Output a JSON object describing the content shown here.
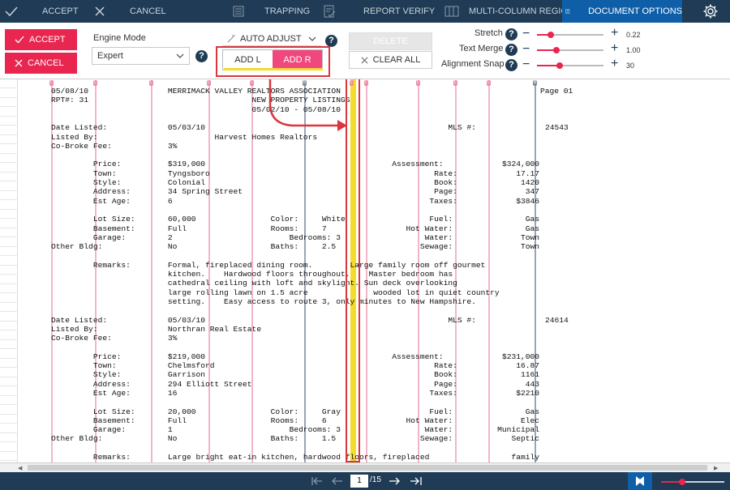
{
  "toolbar": {
    "accept": "ACCEPT",
    "cancel": "CANCEL",
    "trapping": "TRAPPING",
    "report_verify": "REPORT VERIFY",
    "multi_column_region": "MULTI-COLUMN REGION",
    "document_options": "DOCUMENT OPTIONS"
  },
  "options": {
    "accept_btn": "ACCEPT",
    "cancel_btn": "CANCEL",
    "engine_mode_label": "Engine Mode",
    "engine_mode_value": "Expert",
    "auto_adjust": "AUTO ADJUST",
    "add_l": "ADD L",
    "add_r": "ADD R",
    "delete": "DELETE",
    "clear_all": "CLEAR ALL",
    "stretch_label": "Stretch",
    "stretch_value": "0.22",
    "text_merge_label": "Text Merge",
    "text_merge_value": "1.00",
    "alignment_snap_label": "Alignment Snap",
    "alignment_snap_value": "30",
    "stretch_level": 0.22,
    "text_merge_level": 0.35,
    "alignment_snap_level": 0.3
  },
  "document": {
    "lines": [
      "05/08/10                 MERRIMACK VALLEY REALTORS ASSOCIATION",
      "RPT#: 31                                   NEW PROPERTY LISTINGS",
      "                                           05/02/10 - 05/08/10",
      "",
      "Date Listed:             05/03/10                                                    MLS #:",
      "Listed By:                         Harvest Homes Realtors",
      "Co-Broke Fee:            3%",
      "",
      "         Price:          $319,000                                        Assessment:",
      "         Town:           Tyngsboro                                                Rate:",
      "         Style:          Colonial                                                 Book:",
      "         Address:        34 Spring Street                                         Page:",
      "         Est Age:        6                                                       Taxes:",
      "",
      "         Lot Size:       60,000                Color:     White                  Fuel:",
      "         Basement:       Full                  Rooms:     7                 Hot Water:",
      "         Garage:         2                         Bedrooms: 3                  Water:",
      "Other Bldg:              No                    Baths:     2.5                  Sewage:",
      "",
      "         Remarks:        Formal, fireplaced dining room.        Large family room off gourmet",
      "                         kitchen.    Hardwood floors throughout.    Master bedroom has",
      "                         cathedral ceiling with loft and skylight. Sun deck overlooking",
      "                         large rolling lawn on 1.5 acre              wooded lot in quiet country",
      "                         setting.    Easy access to route 3, only minutes to New Hampshire.",
      "",
      "Date Listed:             05/03/10                                                    MLS #:",
      "Listed By:               Northran Real Estate",
      "Co-Broke Fee:            3%",
      "",
      "         Price:          $219,000                                        Assessment:",
      "         Town:           Chelmsford                                               Rate:",
      "         Style:          Garrison                                                 Book:",
      "         Address:        294 Elliott Street                                       Page:",
      "         Est Age:        16                                                      Taxes:",
      "",
      "         Lot Size:       20,000                Color:     Gray                   Fuel:",
      "         Basement:       Full                  Rooms:     6                 Hot Water:",
      "         Garage:         1                         Bedrooms: 3                  Water:",
      "Other Bldg:              No                    Baths:     1.5                  Sewage:",
      "",
      "         Remarks:        Large bright eat-in kitchen, hardwood floors, fireplaced"
    ],
    "right_values": [
      "Page 01",
      "",
      "",
      "",
      "24543",
      "",
      "",
      "",
      "$324,000",
      "17.17",
      "1420",
      "347",
      "$3846",
      "",
      "Gas",
      "Gas",
      "Town",
      "Town",
      "",
      "",
      "",
      "",
      "",
      "",
      "",
      "24614",
      "",
      "",
      "",
      "$231,000",
      "16.87",
      "1161",
      "443",
      "$2210",
      "",
      "Gas",
      "Elec",
      "Municipal",
      "Septic",
      "",
      "family"
    ],
    "column_markers": [
      "L",
      "L",
      "L",
      "L",
      "L",
      "R",
      "L",
      "L",
      "L",
      "L",
      "L",
      "L",
      "L",
      "R"
    ]
  },
  "footer": {
    "page_current": "1",
    "page_total": "/15"
  }
}
